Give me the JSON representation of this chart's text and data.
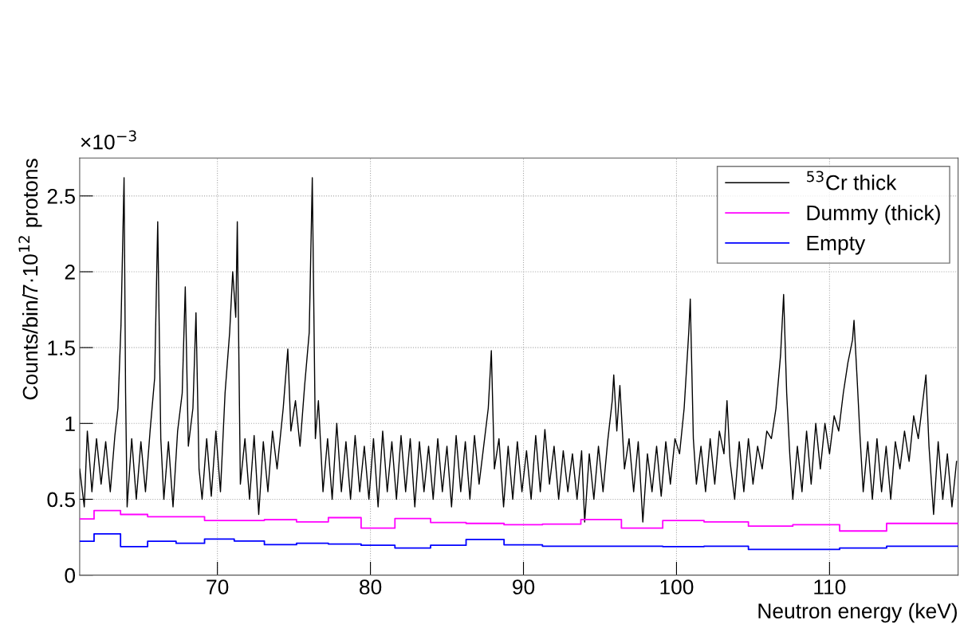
{
  "chart_data": {
    "type": "line",
    "xlabel": "Neutron energy (keV)",
    "ylabel": "Counts/bin/7·10$^{12}$ protons",
    "annotations": [
      "×10$^{−3}$"
    ],
    "xlim": [
      61,
      118.4
    ],
    "xticks": [
      70,
      80,
      90,
      100,
      110
    ],
    "ylim": [
      0,
      2.75
    ],
    "yticks": [
      0,
      0.5,
      1,
      1.5,
      2,
      2.5
    ],
    "grid": true,
    "legend": "top right",
    "line_style": "solid",
    "marker": "none",
    "series": [
      {
        "name": "$^{53}$Cr thick",
        "color": "#000000",
        "x": [
          61.0,
          61.3,
          61.5,
          61.8,
          62.1,
          62.4,
          62.7,
          63.0,
          63.3,
          63.5,
          63.7,
          63.9,
          64.0,
          64.1,
          64.4,
          64.7,
          65.0,
          65.3,
          65.6,
          65.9,
          66.1,
          66.3,
          66.5,
          66.8,
          67.1,
          67.4,
          67.7,
          67.9,
          68.1,
          68.4,
          68.6,
          68.8,
          69.0,
          69.3,
          69.6,
          69.9,
          70.2,
          70.5,
          70.8,
          71.0,
          71.2,
          71.3,
          71.5,
          71.8,
          72.1,
          72.4,
          72.7,
          73.0,
          73.3,
          73.6,
          73.9,
          74.3,
          74.6,
          74.8,
          75.1,
          75.4,
          75.7,
          76.0,
          76.2,
          76.4,
          76.6,
          76.9,
          77.2,
          77.5,
          77.8,
          78.1,
          78.4,
          78.7,
          79.0,
          79.3,
          79.6,
          79.9,
          80.2,
          80.5,
          80.8,
          81.1,
          81.4,
          81.7,
          82.0,
          82.3,
          82.6,
          82.9,
          83.2,
          83.5,
          83.8,
          84.1,
          84.4,
          84.7,
          85.0,
          85.3,
          85.6,
          85.9,
          86.2,
          86.5,
          86.8,
          87.1,
          87.4,
          87.7,
          87.9,
          88.1,
          88.4,
          88.7,
          89.0,
          89.3,
          89.6,
          89.9,
          90.2,
          90.5,
          90.8,
          91.1,
          91.4,
          91.7,
          92.0,
          92.3,
          92.6,
          92.9,
          93.2,
          93.5,
          93.8,
          94.0,
          94.3,
          94.6,
          94.9,
          95.2,
          95.5,
          95.8,
          95.9,
          96.1,
          96.3,
          96.6,
          96.9,
          97.2,
          97.5,
          97.8,
          98.1,
          98.4,
          98.7,
          99.0,
          99.3,
          99.6,
          99.9,
          100.2,
          100.5,
          100.8,
          100.9,
          101.1,
          101.3,
          101.6,
          101.9,
          102.2,
          102.5,
          102.8,
          103.1,
          103.3,
          103.5,
          103.8,
          104.1,
          104.4,
          104.7,
          105.0,
          105.3,
          105.6,
          105.9,
          106.2,
          106.5,
          106.8,
          107.0,
          107.2,
          107.4,
          107.6,
          107.9,
          108.2,
          108.5,
          108.8,
          109.1,
          109.4,
          109.7,
          110.0,
          110.3,
          110.6,
          110.9,
          111.2,
          111.5,
          111.6,
          111.8,
          112.0,
          112.2,
          112.5,
          112.8,
          113.1,
          113.4,
          113.7,
          114.0,
          114.3,
          114.6,
          114.9,
          115.2,
          115.5,
          115.8,
          116.1,
          116.3,
          116.5,
          116.8,
          117.1,
          117.4,
          117.7,
          118.0,
          118.3
        ],
        "values": [
          0.7,
          0.45,
          0.95,
          0.55,
          0.9,
          0.6,
          0.88,
          0.55,
          0.92,
          1.1,
          1.65,
          2.62,
          1.2,
          0.45,
          0.9,
          0.5,
          0.88,
          0.55,
          0.95,
          1.3,
          2.33,
          0.9,
          0.5,
          0.88,
          0.45,
          0.95,
          1.2,
          1.9,
          0.85,
          1.1,
          1.73,
          0.7,
          0.5,
          0.9,
          0.52,
          0.95,
          0.55,
          1.2,
          1.6,
          2.0,
          1.7,
          2.33,
          0.6,
          0.9,
          0.5,
          0.92,
          0.4,
          0.88,
          0.55,
          0.95,
          0.7,
          1.1,
          1.49,
          0.95,
          1.15,
          0.85,
          1.25,
          1.6,
          2.62,
          0.9,
          1.15,
          0.55,
          0.9,
          0.5,
          1.0,
          0.55,
          0.88,
          0.5,
          0.92,
          0.55,
          0.85,
          0.5,
          0.9,
          0.45,
          0.95,
          0.55,
          0.88,
          0.5,
          0.92,
          0.55,
          0.9,
          0.45,
          0.88,
          0.55,
          0.85,
          0.5,
          0.9,
          0.55,
          0.85,
          0.45,
          0.92,
          0.55,
          0.88,
          0.5,
          0.92,
          0.6,
          0.85,
          1.1,
          1.48,
          0.7,
          0.9,
          0.45,
          0.85,
          0.5,
          0.88,
          0.55,
          0.82,
          0.5,
          0.92,
          0.55,
          0.96,
          0.6,
          0.85,
          0.5,
          0.82,
          0.55,
          0.8,
          0.5,
          0.82,
          0.35,
          0.8,
          0.5,
          0.85,
          0.55,
          0.88,
          1.15,
          1.32,
          0.95,
          1.25,
          0.7,
          0.9,
          0.55,
          0.88,
          0.35,
          0.8,
          0.55,
          0.85,
          0.52,
          0.88,
          0.6,
          0.9,
          0.8,
          1.1,
          1.6,
          1.82,
          0.9,
          0.6,
          0.85,
          0.55,
          0.9,
          0.6,
          0.95,
          0.8,
          1.15,
          0.75,
          0.5,
          0.88,
          0.55,
          0.9,
          0.6,
          0.85,
          0.7,
          0.95,
          0.9,
          1.1,
          1.45,
          1.85,
          1.2,
          0.8,
          0.5,
          0.85,
          0.55,
          0.95,
          0.6,
          1.0,
          0.7,
          1.0,
          0.8,
          1.05,
          0.95,
          1.2,
          1.4,
          1.55,
          1.68,
          1.3,
          0.9,
          0.55,
          0.88,
          0.5,
          0.9,
          0.55,
          0.85,
          0.5,
          0.88,
          0.7,
          0.95,
          0.75,
          1.05,
          0.9,
          1.15,
          1.32,
          0.85,
          0.4,
          0.88,
          0.5,
          0.8,
          0.45,
          0.75
        ]
      },
      {
        "name": "Dummy (thick)",
        "color": "#ff00ff",
        "type": "step",
        "x": [
          61,
          61.94,
          63.67,
          65.44,
          67.3,
          69.16,
          71.1,
          73.07,
          75.17,
          77.25,
          79.39,
          81.6,
          83.93,
          86.25,
          88.73,
          91.24,
          93.75,
          96.4,
          99.1,
          101.8,
          104.7,
          107.6,
          110.66,
          113.73,
          118.4
        ],
        "values": [
          0.37,
          0.426,
          0.4,
          0.385,
          0.385,
          0.36,
          0.36,
          0.366,
          0.351,
          0.379,
          0.31,
          0.373,
          0.347,
          0.341,
          0.332,
          0.336,
          0.367,
          0.31,
          0.36,
          0.351,
          0.323,
          0.332,
          0.291,
          0.341,
          0.341
        ]
      },
      {
        "name": "Empty",
        "color": "#0000ff",
        "type": "step",
        "x": [
          61,
          61.94,
          63.67,
          65.44,
          67.3,
          69.16,
          71.1,
          73.07,
          75.17,
          77.25,
          79.39,
          81.6,
          83.93,
          86.25,
          88.73,
          91.24,
          93.75,
          96.4,
          99.1,
          101.8,
          104.7,
          107.6,
          110.66,
          113.73,
          118.4
        ],
        "values": [
          0.223,
          0.272,
          0.188,
          0.223,
          0.21,
          0.238,
          0.225,
          0.201,
          0.21,
          0.205,
          0.197,
          0.179,
          0.197,
          0.235,
          0.2,
          0.191,
          0.19,
          0.19,
          0.188,
          0.19,
          0.169,
          0.169,
          0.179,
          0.19,
          0.19
        ]
      }
    ]
  }
}
